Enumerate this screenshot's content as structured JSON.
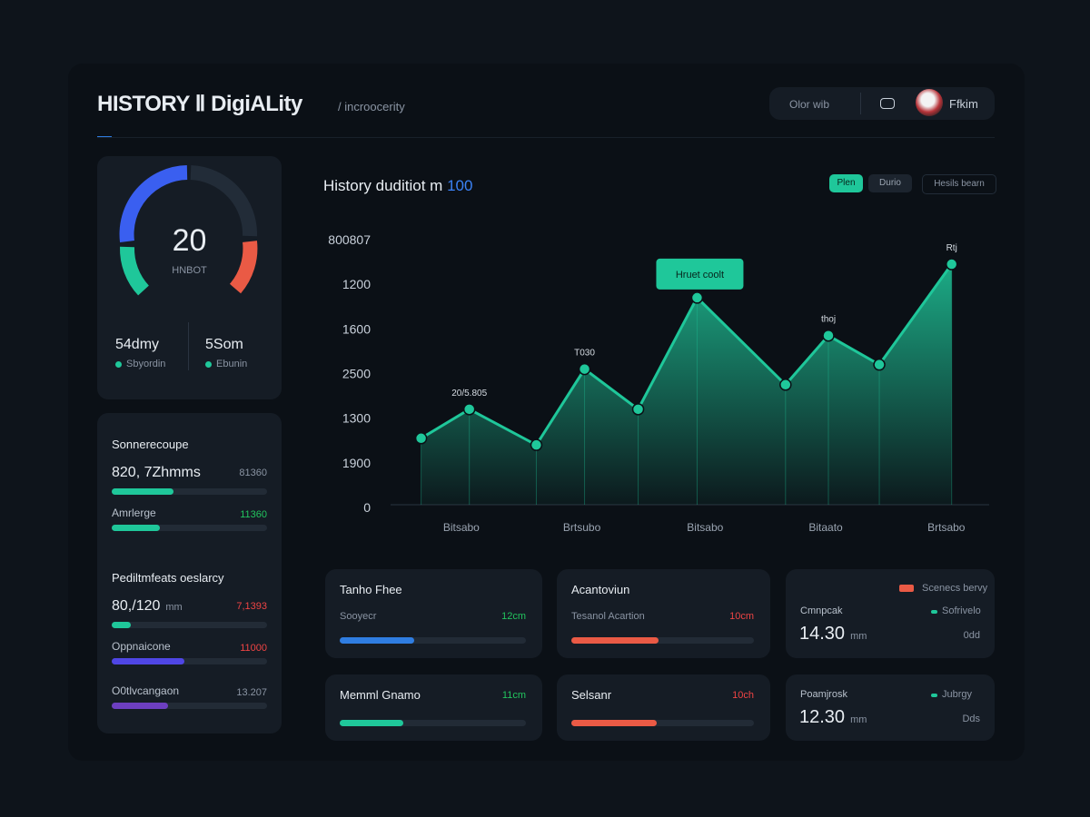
{
  "header": {
    "title": "HISTORY Ⅱ DigiALity",
    "subtitle": "/ incroocerity",
    "search": "Olor wib",
    "user": "Ffkim"
  },
  "gauge": {
    "value": 20,
    "label": "HNBOT",
    "stats": [
      {
        "value": "54dmy",
        "label": "Sbyordin"
      },
      {
        "value": "5Som",
        "label": "Ebunin"
      }
    ]
  },
  "panels": [
    {
      "title": "Sonnerecoupe",
      "rows": [
        {
          "label": "820, 7Zhmms",
          "value": "81360",
          "value_color": "#8a94a3",
          "progress": 40,
          "color": "#1fc79a"
        },
        {
          "label": "Amrlerge",
          "value": "11360",
          "value_color": "#22c55e",
          "progress": 31,
          "color": "#1fc79a"
        }
      ]
    },
    {
      "title": "Pediltmfeats oeslarcy",
      "rows": [
        {
          "label": "80,/120",
          "unit": "mm",
          "value": "7,1393",
          "value_color": "#ef4444",
          "progress": 12,
          "color": "#1fc79a"
        },
        {
          "label": "Oppnaicone",
          "value": "11000",
          "value_color": "#ef4444",
          "progress": 47,
          "color": "#4f46e5"
        },
        {
          "label": "O0tlvcangaon",
          "value": "13.207",
          "value_color": "#8a94a3",
          "progress": 36,
          "color": "#6d3fc0"
        }
      ]
    }
  ],
  "chart": {
    "type": "area",
    "title": "History duditiot m",
    "title_accent": "100",
    "tabs": [
      "Plen",
      "Durio",
      "Hesils bearn"
    ],
    "x": [
      0.4,
      1.3,
      2.55,
      3.45,
      4.45,
      5.55,
      7.2,
      8.0,
      8.95,
      10.3
    ],
    "values": [
      1.55,
      2.2,
      1.4,
      3.1,
      2.2,
      4.7,
      2.75,
      3.85,
      3.2,
      5.45
    ],
    "point_notes": [
      null,
      "20/5.805",
      null,
      "T030",
      null,
      "Hruet coolt",
      null,
      "thoj",
      null,
      "Rtj"
    ],
    "xlim": [
      0,
      11
    ],
    "xticks": [
      {
        "value": 1.15,
        "label": "Bitsabo"
      },
      {
        "value": 3.4,
        "label": "Brtsubo"
      },
      {
        "value": 5.7,
        "label": "Bitsabo"
      },
      {
        "value": 7.95,
        "label": "Bitaato"
      },
      {
        "value": 10.2,
        "label": "Brtsabo"
      }
    ],
    "ylim": [
      0,
      6
    ],
    "yticks": [
      0,
      {
        "value": 1,
        "label": "1900"
      },
      {
        "value": 2,
        "label": "1300"
      },
      {
        "value": 3,
        "label": "2500"
      },
      {
        "value": 4,
        "label": "1600"
      },
      {
        "value": 5,
        "label": "1200"
      },
      {
        "value": 6,
        "label": "800807"
      }
    ],
    "color": "#1fc79a"
  },
  "cards": [
    {
      "title": "Tanho Fhee",
      "label": "Sooyecr",
      "value": "12cm",
      "value_color": "#22c55e",
      "progress": 40,
      "color": "#2f7de1"
    },
    {
      "title": "Acantoviun",
      "label": "Tesanol Acartion",
      "value": "10cm",
      "value_color": "#ef4444",
      "progress": 48,
      "color": "#ea5a45"
    },
    {
      "title": "Memml Gnamo",
      "value": "11cm",
      "value_color": "#22c55e",
      "progress": 34,
      "color": "#1fc79a"
    },
    {
      "title": "Selsanr",
      "value": "10ch",
      "value_color": "#ef4444",
      "progress": 47,
      "color": "#ea5a45"
    }
  ],
  "stat_cards": [
    {
      "legend": "Scenecs bervy",
      "legend_color": "#ea5a45",
      "label": "Cmnpcak",
      "tag": "Sofrivelo",
      "value": "14.30",
      "unit": "mm",
      "foot": "0dd"
    },
    {
      "label": "Poamjrosk",
      "tag": "Jubrgy",
      "value": "12.30",
      "unit": "mm",
      "foot": "Dds"
    }
  ]
}
